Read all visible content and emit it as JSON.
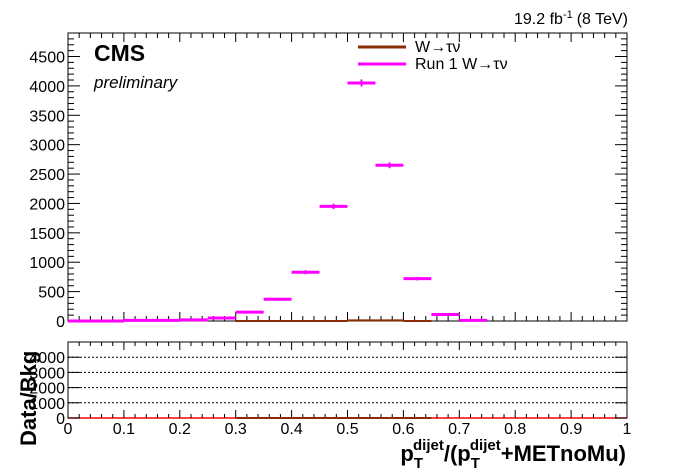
{
  "header": {
    "lumi_value": "19.2 fb",
    "lumi_exp": "-1",
    "lumi_energy": "(8 TeV)",
    "experiment": "CMS",
    "status": "preliminary"
  },
  "legend": {
    "items": [
      {
        "label": "W→τν",
        "color": "#8b2d00"
      },
      {
        "label": "Run 1 W→τν",
        "color": "#ff00ff"
      }
    ]
  },
  "axes": {
    "xlabel_parts": {
      "p": "p",
      "T": "T",
      "dijet": "dijet",
      "mid": "/(p",
      "end": "+METnoMu)"
    },
    "ratio_ylabel": "Data/Bkg"
  },
  "chart_data": [
    {
      "type": "line",
      "title": "",
      "xlim": [
        0,
        1
      ],
      "ylim": [
        0,
        4900
      ],
      "x_ticks": [
        0,
        0.1,
        0.2,
        0.3,
        0.4,
        0.5,
        0.6,
        0.7,
        0.8,
        0.9,
        1
      ],
      "y_ticks": [
        0,
        500,
        1000,
        1500,
        2000,
        2500,
        3000,
        3500,
        4000,
        4500
      ],
      "bin_edges": [
        0,
        0.05,
        0.1,
        0.15,
        0.2,
        0.25,
        0.3,
        0.35,
        0.4,
        0.45,
        0.5,
        0.55,
        0.6,
        0.65,
        0.7,
        0.75,
        0.8,
        0.85,
        0.9,
        0.95,
        1
      ],
      "series": [
        {
          "name": "W→τν",
          "color": "#8b2d00",
          "values": [
            0,
            0,
            0,
            0,
            0,
            0,
            0,
            0,
            0,
            0,
            10,
            10,
            0,
            0,
            0,
            0,
            0,
            0,
            0,
            0
          ]
        },
        {
          "name": "Run 1 W→τν",
          "color": "#ff00ff",
          "values": [
            0,
            0,
            10,
            10,
            20,
            50,
            150,
            370,
            830,
            1950,
            4050,
            2650,
            720,
            110,
            10,
            0,
            0,
            0,
            0,
            0
          ],
          "errors": [
            0,
            0,
            5,
            5,
            8,
            10,
            15,
            25,
            35,
            45,
            60,
            50,
            30,
            12,
            4,
            0,
            0,
            0,
            0,
            0
          ]
        }
      ]
    },
    {
      "type": "line",
      "title": "",
      "ylabel": "Data/Bkg",
      "xlabel": "",
      "xlim": [
        0,
        1
      ],
      "ylim": [
        0,
        5000
      ],
      "y_ticks": [
        0,
        1000,
        2000,
        3000,
        4000
      ],
      "x_ticks": [
        0,
        0.1,
        0.2,
        0.3,
        0.4,
        0.5,
        0.6,
        0.7,
        0.8,
        0.9,
        1
      ],
      "grid": true,
      "reference_line": {
        "y": 0,
        "color": "#ff0000"
      },
      "series": [
        {
          "name": "",
          "color": "#8b2d00",
          "x": [
            0.325,
            0.375,
            0.425,
            0.475,
            0.525,
            0.575,
            0.625
          ],
          "values": [
            0,
            0,
            0,
            0,
            0,
            0,
            0
          ]
        }
      ]
    }
  ]
}
